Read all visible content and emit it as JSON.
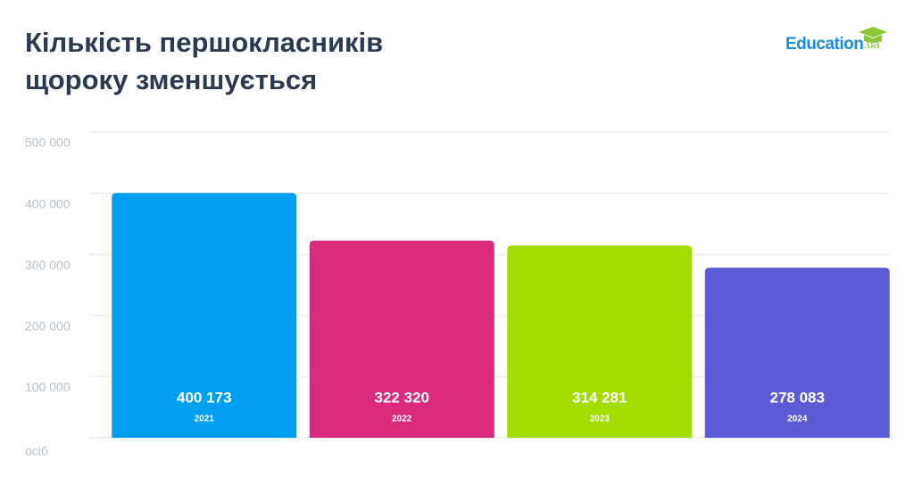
{
  "chart_data": {
    "type": "bar",
    "title": [
      "Кількість першокласників",
      "щороку зменшується"
    ],
    "logo": {
      "name": "Education",
      "suffix": ".ua"
    },
    "y_label": "осіб",
    "categories": [
      "2021",
      "2022",
      "2023",
      "2024"
    ],
    "values": [
      400173,
      322320,
      314281,
      278083
    ],
    "value_labels": [
      "400 173",
      "322 320",
      "314 281",
      "278 083"
    ],
    "colors": [
      "#009ff0",
      "#d92a7e",
      "#a2dc00",
      "#5d5bd4"
    ],
    "ylim": [
      0,
      500000
    ],
    "yticks": [
      {
        "value": 100000,
        "label": "100 000"
      },
      {
        "value": 200000,
        "label": "200 000"
      },
      {
        "value": 300000,
        "label": "300 000"
      },
      {
        "value": 400000,
        "label": "400 000"
      },
      {
        "value": 500000,
        "label": "500 000"
      }
    ],
    "grid": true
  }
}
